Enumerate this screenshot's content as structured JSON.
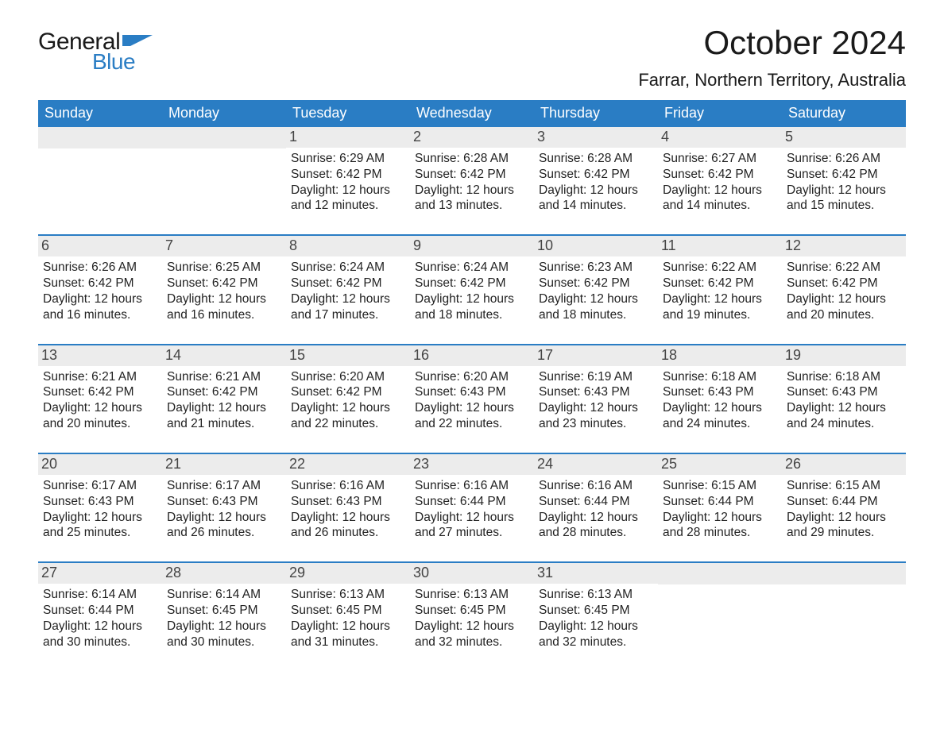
{
  "brand": {
    "word1": "General",
    "word2": "Blue",
    "mark_color": "#2a7dc4",
    "text_color": "#1a1a1a"
  },
  "header": {
    "title": "October 2024",
    "location": "Farrar, Northern Territory, Australia"
  },
  "colors": {
    "header_bg": "#2a7dc4",
    "header_text": "#ffffff",
    "daynum_bg": "#ececec",
    "daynum_text": "#444444",
    "body_text": "#222222",
    "week_border": "#2a7dc4",
    "page_bg": "#ffffff"
  },
  "typography": {
    "title_fontsize": 42,
    "location_fontsize": 22,
    "dow_fontsize": 18,
    "daynum_fontsize": 18,
    "info_fontsize": 15.5,
    "font_family": "Arial"
  },
  "days_of_week": [
    "Sunday",
    "Monday",
    "Tuesday",
    "Wednesday",
    "Thursday",
    "Friday",
    "Saturday"
  ],
  "labels": {
    "sunrise": "Sunrise:",
    "sunset": "Sunset:",
    "daylight": "Daylight:"
  },
  "weeks": [
    [
      {
        "n": "",
        "sunrise": "",
        "sunset": "",
        "daylight": ""
      },
      {
        "n": "",
        "sunrise": "",
        "sunset": "",
        "daylight": ""
      },
      {
        "n": "1",
        "sunrise": "6:29 AM",
        "sunset": "6:42 PM",
        "daylight": "12 hours and 12 minutes."
      },
      {
        "n": "2",
        "sunrise": "6:28 AM",
        "sunset": "6:42 PM",
        "daylight": "12 hours and 13 minutes."
      },
      {
        "n": "3",
        "sunrise": "6:28 AM",
        "sunset": "6:42 PM",
        "daylight": "12 hours and 14 minutes."
      },
      {
        "n": "4",
        "sunrise": "6:27 AM",
        "sunset": "6:42 PM",
        "daylight": "12 hours and 14 minutes."
      },
      {
        "n": "5",
        "sunrise": "6:26 AM",
        "sunset": "6:42 PM",
        "daylight": "12 hours and 15 minutes."
      }
    ],
    [
      {
        "n": "6",
        "sunrise": "6:26 AM",
        "sunset": "6:42 PM",
        "daylight": "12 hours and 16 minutes."
      },
      {
        "n": "7",
        "sunrise": "6:25 AM",
        "sunset": "6:42 PM",
        "daylight": "12 hours and 16 minutes."
      },
      {
        "n": "8",
        "sunrise": "6:24 AM",
        "sunset": "6:42 PM",
        "daylight": "12 hours and 17 minutes."
      },
      {
        "n": "9",
        "sunrise": "6:24 AM",
        "sunset": "6:42 PM",
        "daylight": "12 hours and 18 minutes."
      },
      {
        "n": "10",
        "sunrise": "6:23 AM",
        "sunset": "6:42 PM",
        "daylight": "12 hours and 18 minutes."
      },
      {
        "n": "11",
        "sunrise": "6:22 AM",
        "sunset": "6:42 PM",
        "daylight": "12 hours and 19 minutes."
      },
      {
        "n": "12",
        "sunrise": "6:22 AM",
        "sunset": "6:42 PM",
        "daylight": "12 hours and 20 minutes."
      }
    ],
    [
      {
        "n": "13",
        "sunrise": "6:21 AM",
        "sunset": "6:42 PM",
        "daylight": "12 hours and 20 minutes."
      },
      {
        "n": "14",
        "sunrise": "6:21 AM",
        "sunset": "6:42 PM",
        "daylight": "12 hours and 21 minutes."
      },
      {
        "n": "15",
        "sunrise": "6:20 AM",
        "sunset": "6:42 PM",
        "daylight": "12 hours and 22 minutes."
      },
      {
        "n": "16",
        "sunrise": "6:20 AM",
        "sunset": "6:43 PM",
        "daylight": "12 hours and 22 minutes."
      },
      {
        "n": "17",
        "sunrise": "6:19 AM",
        "sunset": "6:43 PM",
        "daylight": "12 hours and 23 minutes."
      },
      {
        "n": "18",
        "sunrise": "6:18 AM",
        "sunset": "6:43 PM",
        "daylight": "12 hours and 24 minutes."
      },
      {
        "n": "19",
        "sunrise": "6:18 AM",
        "sunset": "6:43 PM",
        "daylight": "12 hours and 24 minutes."
      }
    ],
    [
      {
        "n": "20",
        "sunrise": "6:17 AM",
        "sunset": "6:43 PM",
        "daylight": "12 hours and 25 minutes."
      },
      {
        "n": "21",
        "sunrise": "6:17 AM",
        "sunset": "6:43 PM",
        "daylight": "12 hours and 26 minutes."
      },
      {
        "n": "22",
        "sunrise": "6:16 AM",
        "sunset": "6:43 PM",
        "daylight": "12 hours and 26 minutes."
      },
      {
        "n": "23",
        "sunrise": "6:16 AM",
        "sunset": "6:44 PM",
        "daylight": "12 hours and 27 minutes."
      },
      {
        "n": "24",
        "sunrise": "6:16 AM",
        "sunset": "6:44 PM",
        "daylight": "12 hours and 28 minutes."
      },
      {
        "n": "25",
        "sunrise": "6:15 AM",
        "sunset": "6:44 PM",
        "daylight": "12 hours and 28 minutes."
      },
      {
        "n": "26",
        "sunrise": "6:15 AM",
        "sunset": "6:44 PM",
        "daylight": "12 hours and 29 minutes."
      }
    ],
    [
      {
        "n": "27",
        "sunrise": "6:14 AM",
        "sunset": "6:44 PM",
        "daylight": "12 hours and 30 minutes."
      },
      {
        "n": "28",
        "sunrise": "6:14 AM",
        "sunset": "6:45 PM",
        "daylight": "12 hours and 30 minutes."
      },
      {
        "n": "29",
        "sunrise": "6:13 AM",
        "sunset": "6:45 PM",
        "daylight": "12 hours and 31 minutes."
      },
      {
        "n": "30",
        "sunrise": "6:13 AM",
        "sunset": "6:45 PM",
        "daylight": "12 hours and 32 minutes."
      },
      {
        "n": "31",
        "sunrise": "6:13 AM",
        "sunset": "6:45 PM",
        "daylight": "12 hours and 32 minutes."
      },
      {
        "n": "",
        "sunrise": "",
        "sunset": "",
        "daylight": ""
      },
      {
        "n": "",
        "sunrise": "",
        "sunset": "",
        "daylight": ""
      }
    ]
  ]
}
